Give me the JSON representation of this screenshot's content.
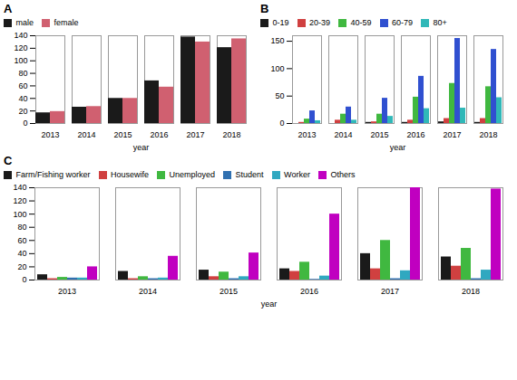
{
  "chart_data": [
    {
      "type": "bar",
      "title": "A",
      "xlabel": "year",
      "categories": [
        "2013",
        "2014",
        "2015",
        "2016",
        "2017",
        "2018"
      ],
      "series": [
        {
          "name": "male",
          "color": "#1a1a1a",
          "values": [
            17,
            26,
            40,
            68,
            138,
            121
          ]
        },
        {
          "name": "female",
          "color": "#d06070",
          "values": [
            19,
            27,
            40,
            58,
            130,
            135
          ]
        }
      ],
      "ylim": [
        0,
        140
      ],
      "yticks": [
        0,
        20,
        40,
        60,
        80,
        100,
        120,
        140
      ],
      "grid": false,
      "legend": "upper left"
    },
    {
      "type": "bar",
      "title": "B",
      "xlabel": "year",
      "categories": [
        "2013",
        "2014",
        "2015",
        "2016",
        "2017",
        "2018"
      ],
      "series": [
        {
          "name": "0-19",
          "color": "#1a1a1a",
          "values": [
            0,
            0,
            2,
            2,
            3,
            2
          ]
        },
        {
          "name": "20-39",
          "color": "#d04040",
          "values": [
            2,
            6,
            3,
            6,
            9,
            9
          ]
        },
        {
          "name": "40-59",
          "color": "#40b840",
          "values": [
            8,
            17,
            17,
            48,
            73,
            67
          ]
        },
        {
          "name": "60-79",
          "color": "#3050d0",
          "values": [
            23,
            30,
            46,
            86,
            155,
            135
          ]
        },
        {
          "name": "80+",
          "color": "#30b8b8",
          "values": [
            5,
            6,
            13,
            27,
            28,
            47
          ]
        }
      ],
      "ylim": [
        0,
        160
      ],
      "yticks": [
        0,
        50,
        100,
        150
      ],
      "grid": false,
      "legend": "upper left"
    },
    {
      "type": "bar",
      "title": "C",
      "xlabel": "year",
      "categories": [
        "2013",
        "2014",
        "2015",
        "2016",
        "2017",
        "2018"
      ],
      "series": [
        {
          "name": "Farm/Fishing worker",
          "color": "#1a1a1a",
          "values": [
            8,
            13,
            15,
            17,
            40,
            35
          ]
        },
        {
          "name": "Housewife",
          "color": "#d04040",
          "values": [
            2,
            2,
            5,
            13,
            17,
            21
          ]
        },
        {
          "name": "Unemployed",
          "color": "#40b840",
          "values": [
            4,
            5,
            12,
            27,
            60,
            48
          ]
        },
        {
          "name": "Student",
          "color": "#3070b0",
          "values": [
            3,
            2,
            2,
            1,
            2,
            2
          ]
        },
        {
          "name": "Worker",
          "color": "#30a8c0",
          "values": [
            3,
            3,
            5,
            6,
            14,
            15
          ]
        },
        {
          "name": "Others",
          "color": "#c000c0",
          "values": [
            20,
            36,
            41,
            100,
            140,
            138
          ]
        }
      ],
      "ylim": [
        0,
        140
      ],
      "yticks": [
        0,
        20,
        40,
        60,
        80,
        100,
        120,
        140
      ],
      "grid": false,
      "legend": "upper left"
    }
  ]
}
